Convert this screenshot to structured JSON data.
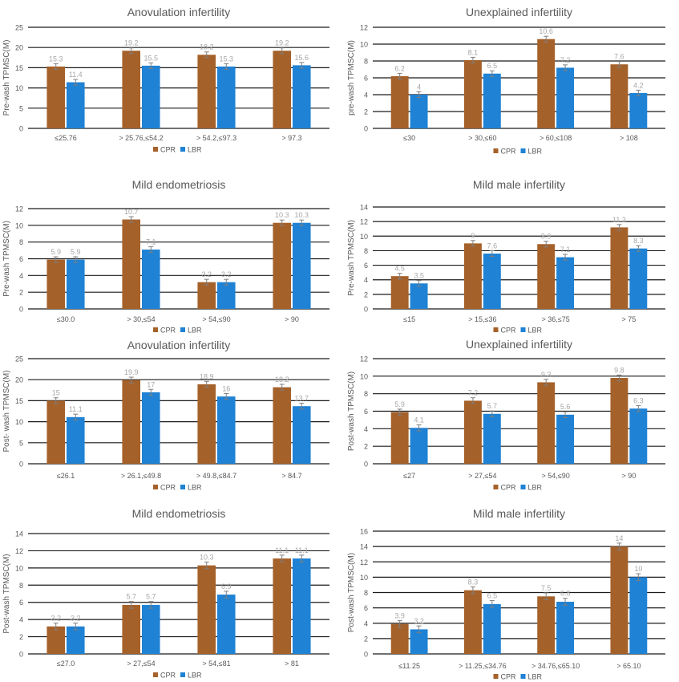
{
  "chart_data": [
    {
      "type": "bar",
      "title": "Anovulation infertility",
      "xlabel": "",
      "ylabel": "Pre-wash TPMSC(M)",
      "ylim": [
        0,
        25
      ],
      "yticks": [
        0,
        5,
        10,
        15,
        20,
        25
      ],
      "categories": [
        "≤25.76",
        "> 25.76,≤54.2",
        "> 54.2,≤97.3",
        "> 97.3"
      ],
      "series": [
        {
          "name": "CPR",
          "values": [
            15.3,
            19.2,
            18.2,
            19.2
          ]
        },
        {
          "name": "LBR",
          "values": [
            11.4,
            15.5,
            15.3,
            15.6
          ]
        }
      ],
      "data_labels": [
        [
          "15.3",
          "19.2",
          "18.2",
          "19.2"
        ],
        [
          "11.4",
          "15.5",
          "15.3",
          "15.6"
        ]
      ],
      "error_bars": true,
      "grid": "horizontal",
      "legend_position": "bottom"
    },
    {
      "type": "bar",
      "title": "Unexplained infertility",
      "xlabel": "",
      "ylabel": "pre-wash TPMSC(M)",
      "ylim": [
        0,
        12
      ],
      "yticks": [
        0,
        2,
        4,
        6,
        8,
        10,
        12
      ],
      "categories": [
        "≤30",
        "> 30,≤60",
        "> 60,≤108",
        "> 108"
      ],
      "series": [
        {
          "name": "CPR",
          "values": [
            6.2,
            8.1,
            10.6,
            7.6
          ]
        },
        {
          "name": "LBR",
          "values": [
            4,
            6.5,
            7.2,
            4.2
          ]
        }
      ],
      "data_labels": [
        [
          "6.2",
          "8.1",
          "10.6",
          "7.6"
        ],
        [
          "4",
          "6.5",
          "7.2",
          "4.2"
        ]
      ],
      "error_bars": true,
      "grid": "horizontal",
      "legend_position": "bottom"
    },
    {
      "type": "bar",
      "title": "Mild endometriosis",
      "xlabel": "",
      "ylabel": "Pre-wash TPMSC(M)",
      "ylim": [
        0,
        12
      ],
      "yticks": [
        0,
        2,
        4,
        6,
        8,
        10,
        12
      ],
      "categories": [
        "≤30.0",
        "> 30,≤54",
        "> 54,≤90",
        "> 90"
      ],
      "series": [
        {
          "name": "CPR",
          "values": [
            5.9,
            10.7,
            3.2,
            10.3
          ]
        },
        {
          "name": "LBR",
          "values": [
            5.9,
            7.1,
            3.2,
            10.3
          ]
        }
      ],
      "data_labels": [
        [
          "5.9",
          "10.7",
          "3.2",
          "10.3"
        ],
        [
          "5.9",
          "7.1",
          "3.2",
          "10.3"
        ]
      ],
      "error_bars": true,
      "grid": "horizontal",
      "legend_position": "bottom"
    },
    {
      "type": "bar",
      "title": "Mild male infertility",
      "xlabel": "",
      "ylabel": "Pre-wash TPMSC(M)",
      "ylim": [
        0,
        14
      ],
      "yticks": [
        0,
        2,
        4,
        6,
        8,
        10,
        12,
        14
      ],
      "categories": [
        "≤15",
        "> 15,≤36",
        "> 36,≤75",
        "> 75"
      ],
      "series": [
        {
          "name": "CPR",
          "values": [
            4.5,
            9,
            8.9,
            11.2
          ]
        },
        {
          "name": "LBR",
          "values": [
            3.5,
            7.6,
            7.1,
            8.3
          ]
        }
      ],
      "data_labels": [
        [
          "4.5",
          "9",
          "8.9",
          "11.2"
        ],
        [
          "3.5",
          "7.6",
          "7.1",
          "8.3"
        ]
      ],
      "error_bars": true,
      "grid": "horizontal",
      "legend_position": "bottom"
    },
    {
      "type": "bar",
      "title": "Anovulation infertility",
      "xlabel": "",
      "ylabel": "Post- wash TPMSC(M)",
      "ylim": [
        0,
        25
      ],
      "yticks": [
        0,
        5,
        10,
        15,
        20,
        25
      ],
      "categories": [
        "≤26.1",
        "> 26.1,≤49.8",
        "> 49.8,≤84.7",
        "> 84.7"
      ],
      "series": [
        {
          "name": "CPR",
          "values": [
            15,
            19.9,
            18.9,
            18.2
          ]
        },
        {
          "name": "LBR",
          "values": [
            11.1,
            17,
            16,
            13.7
          ]
        }
      ],
      "data_labels": [
        [
          "15",
          "19.9",
          "18.9",
          "18.2"
        ],
        [
          "11.1",
          "17",
          "16",
          "13.7"
        ]
      ],
      "error_bars": true,
      "grid": "horizontal",
      "legend_position": "bottom"
    },
    {
      "type": "bar",
      "title": "Unexplained infertility",
      "xlabel": "",
      "ylabel": "Post-wash TPMSC(M)",
      "ylim": [
        0,
        12
      ],
      "yticks": [
        0,
        2,
        4,
        6,
        8,
        10,
        12
      ],
      "categories": [
        "≤27",
        "> 27,≤54",
        "> 54,≤90",
        "> 90"
      ],
      "series": [
        {
          "name": "CPR",
          "values": [
            5.9,
            7.2,
            9.3,
            9.8
          ]
        },
        {
          "name": "LBR",
          "values": [
            4.1,
            5.7,
            5.6,
            6.3
          ]
        }
      ],
      "data_labels": [
        [
          "5.9",
          "7.2",
          "9.3",
          "9.8"
        ],
        [
          "4.1",
          "5.7",
          "5.6",
          "6.3"
        ]
      ],
      "error_bars": true,
      "grid": "horizontal",
      "legend_position": "bottom"
    },
    {
      "type": "bar",
      "title": "Mild  endometriosis",
      "xlabel": "",
      "ylabel": "Post-wash TPMSC(M)",
      "ylim": [
        0,
        14
      ],
      "yticks": [
        0,
        2,
        4,
        6,
        8,
        10,
        12,
        14
      ],
      "categories": [
        "≤27.0",
        "> 27,≤54",
        "> 54,≤81",
        "> 81"
      ],
      "series": [
        {
          "name": "CPR",
          "values": [
            3.2,
            5.7,
            10.3,
            11.1
          ]
        },
        {
          "name": "LBR",
          "values": [
            3.2,
            5.7,
            6.9,
            11.1
          ]
        }
      ],
      "data_labels": [
        [
          "3.2",
          "5.7",
          "10.3",
          "11.1"
        ],
        [
          "3.2",
          "5.7",
          "6.9",
          "11.1"
        ]
      ],
      "error_bars": true,
      "grid": "horizontal",
      "legend_position": "bottom"
    },
    {
      "type": "bar",
      "title": "Mild male infertility",
      "xlabel": "",
      "ylabel": "Post-wash TPMSC(M)",
      "ylim": [
        0,
        16
      ],
      "yticks": [
        0,
        2,
        4,
        6,
        8,
        10,
        12,
        14,
        16
      ],
      "categories": [
        "≤11.25",
        "> 11.25,≤34.76",
        "> 34.76,≤65.10",
        "> 65.10"
      ],
      "series": [
        {
          "name": "CPR",
          "values": [
            3.9,
            8.3,
            7.5,
            14
          ]
        },
        {
          "name": "LBR",
          "values": [
            3.2,
            6.5,
            6.8,
            10
          ]
        }
      ],
      "data_labels": [
        [
          "3.9",
          "8.3",
          "7.5",
          "14"
        ],
        [
          "3.2",
          "6.5",
          "6.8",
          "10"
        ]
      ],
      "error_bars": true,
      "grid": "horizontal",
      "legend_position": "bottom"
    }
  ],
  "colors": {
    "CPR": "#a5612a",
    "LBR": "#1f82d4",
    "grid": "#1a1a1a",
    "axis_text": "#595959",
    "title_text": "#595959",
    "data_label_text": "#a6a6a6",
    "error_bar": "#7f7f7f"
  }
}
